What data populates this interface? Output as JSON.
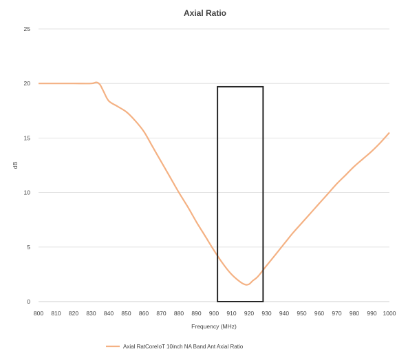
{
  "chart_data": {
    "type": "line",
    "title": "Axial Ratio",
    "xlabel": "Frequency (MHz)",
    "ylabel": "dB",
    "xlim": [
      800,
      1000
    ],
    "ylim": [
      0,
      25
    ],
    "xticks": [
      800,
      810,
      820,
      830,
      840,
      850,
      860,
      870,
      880,
      890,
      900,
      910,
      920,
      930,
      940,
      950,
      960,
      970,
      980,
      990,
      1000
    ],
    "yticks": [
      0,
      5,
      10,
      15,
      20,
      25
    ],
    "grid": "horizontal",
    "legend_position": "bottom",
    "series": [
      {
        "name": "Axial RatCoreIoT 10inch NA Band Ant Axial Ratio",
        "color": "#f4b183",
        "x": [
          800,
          810,
          820,
          830,
          833,
          835,
          837,
          840,
          845,
          850,
          855,
          860,
          865,
          870,
          875,
          880,
          885,
          890,
          895,
          900,
          905,
          910,
          915,
          918,
          920,
          922,
          925,
          930,
          935,
          940,
          945,
          950,
          955,
          960,
          965,
          970,
          975,
          980,
          985,
          990,
          995,
          1000
        ],
        "y": [
          20,
          20,
          20,
          20,
          20.1,
          19.9,
          19.3,
          18.4,
          17.9,
          17.4,
          16.6,
          15.6,
          14.2,
          12.8,
          11.4,
          10.0,
          8.7,
          7.3,
          6.0,
          4.7,
          3.5,
          2.5,
          1.8,
          1.55,
          1.6,
          1.9,
          2.3,
          3.3,
          4.3,
          5.3,
          6.3,
          7.2,
          8.1,
          9.0,
          9.9,
          10.8,
          11.6,
          12.4,
          13.1,
          13.8,
          14.6,
          15.5
        ]
      }
    ],
    "annotations": [
      {
        "type": "rectangle",
        "x_range": [
          902,
          928
        ],
        "y_range": [
          0,
          19.7
        ],
        "color": "#262626"
      }
    ]
  }
}
